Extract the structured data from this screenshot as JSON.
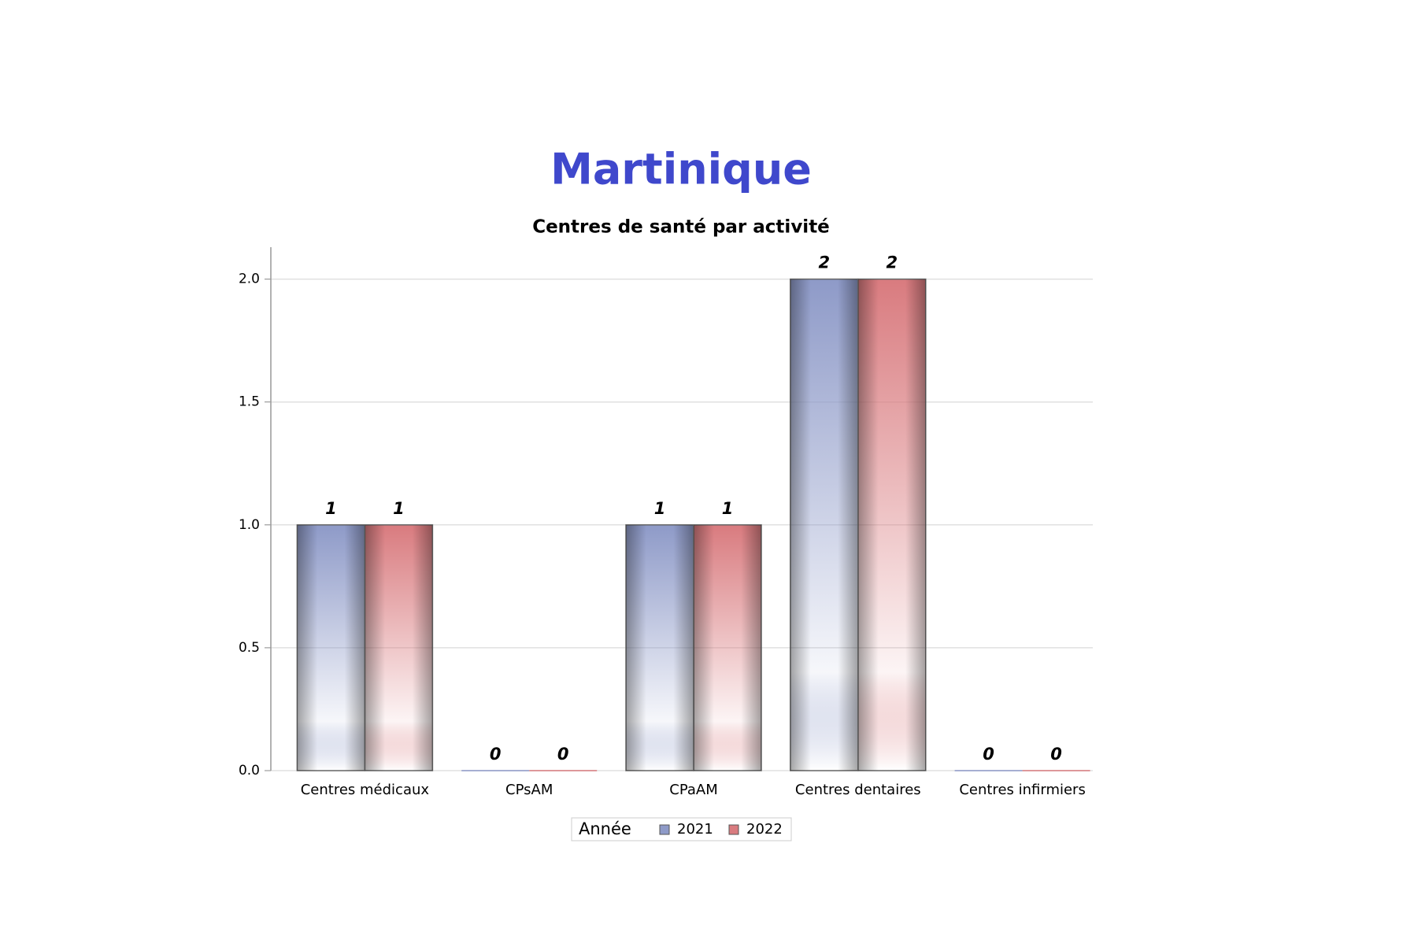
{
  "chart_data": {
    "type": "bar",
    "title": "Martinique",
    "subtitle": "Centres de santé par activité",
    "categories": [
      "Centres médicaux",
      "CPsAM",
      "CPaAM",
      "Centres dentaires",
      "Centres infirmiers"
    ],
    "series": [
      {
        "name": "2021",
        "color": "#8e9ac8",
        "values": [
          1,
          0,
          1,
          2,
          0
        ]
      },
      {
        "name": "2022",
        "color": "#d97b7f",
        "values": [
          1,
          0,
          1,
          2,
          0
        ]
      }
    ],
    "legend_title": "Année",
    "ylim": [
      0,
      2.13
    ],
    "yticks": [
      {
        "value": 0,
        "label": "0.0"
      },
      {
        "value": 0.5,
        "label": "0.5"
      },
      {
        "value": 1,
        "label": "1.0"
      },
      {
        "value": 1.5,
        "label": "1.5"
      },
      {
        "value": 2,
        "label": "2.0"
      }
    ],
    "grid": true
  }
}
